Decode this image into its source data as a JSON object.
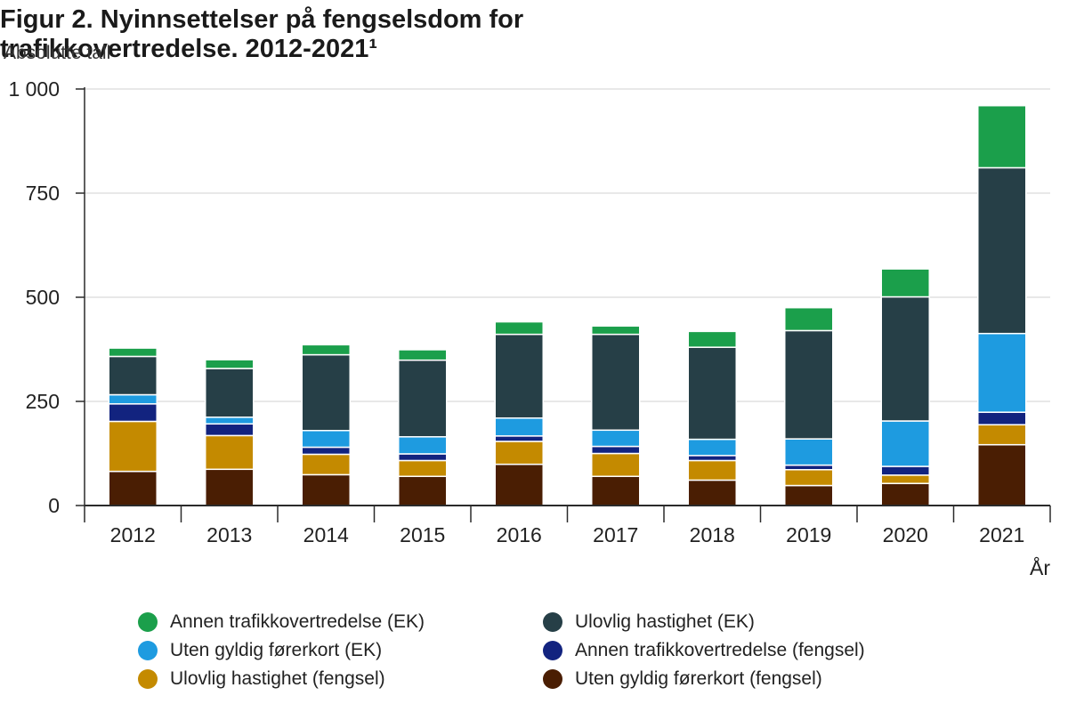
{
  "title": "Figur 2. Nyinnsettelser på fengselsdom for trafikkovertredelse. 2012-2021¹",
  "unit_label": "Absolutte tall",
  "chart_data": {
    "type": "bar",
    "stacked": true,
    "title": "Figur 2. Nyinnsettelser på fengselsdom for trafikkovertredelse. 2012-2021¹",
    "ylabel": "Absolutte tall",
    "xlabel": "År",
    "ylim": [
      0,
      1000
    ],
    "yticks": [
      0,
      250,
      500,
      750,
      1000
    ],
    "ytick_labels": [
      "0",
      "250",
      "500",
      "750",
      "1 000"
    ],
    "categories": [
      "2012",
      "2013",
      "2014",
      "2015",
      "2016",
      "2017",
      "2018",
      "2019",
      "2020",
      "2021"
    ],
    "grid": true,
    "legend_position": "bottom",
    "series": [
      {
        "name": "Uten gyldig førerkort (fengsel)",
        "color": "#4a1e03",
        "values": [
          82,
          87,
          74,
          70,
          99,
          70,
          61,
          48,
          53,
          146
        ]
      },
      {
        "name": "Ulovlig hastighet (fengsel)",
        "color": "#c48a00",
        "values": [
          120,
          81,
          49,
          38,
          55,
          55,
          47,
          38,
          20,
          48
        ]
      },
      {
        "name": "Annen trafikkovertredelse (fengsel)",
        "color": "#12237f",
        "values": [
          42,
          28,
          17,
          16,
          13,
          17,
          12,
          11,
          21,
          30
        ]
      },
      {
        "name": "Uten gyldig førerkort (EK)",
        "color": "#1e9be0",
        "values": [
          22,
          16,
          40,
          41,
          43,
          39,
          39,
          63,
          109,
          189
        ]
      },
      {
        "name": "Ulovlig hastighet (EK)",
        "color": "#263f47",
        "values": [
          92,
          117,
          182,
          184,
          201,
          230,
          221,
          260,
          298,
          398
        ]
      },
      {
        "name": "Annen trafikkovertredelse (EK)",
        "color": "#1b9f4b",
        "values": [
          20,
          21,
          24,
          25,
          30,
          20,
          38,
          55,
          67,
          149
        ]
      }
    ]
  },
  "legend": [
    {
      "label": "Annen trafikkovertredelse (EK)",
      "color": "#1b9f4b"
    },
    {
      "label": "Ulovlig hastighet (EK)",
      "color": "#263f47"
    },
    {
      "label": "Uten gyldig førerkort (EK)",
      "color": "#1e9be0"
    },
    {
      "label": "Annen trafikkovertredelse (fengsel)",
      "color": "#12237f"
    },
    {
      "label": "Ulovlig hastighet (fengsel)",
      "color": "#c48a00"
    },
    {
      "label": "Uten gyldig førerkort (fengsel)",
      "color": "#4a1e03"
    }
  ]
}
